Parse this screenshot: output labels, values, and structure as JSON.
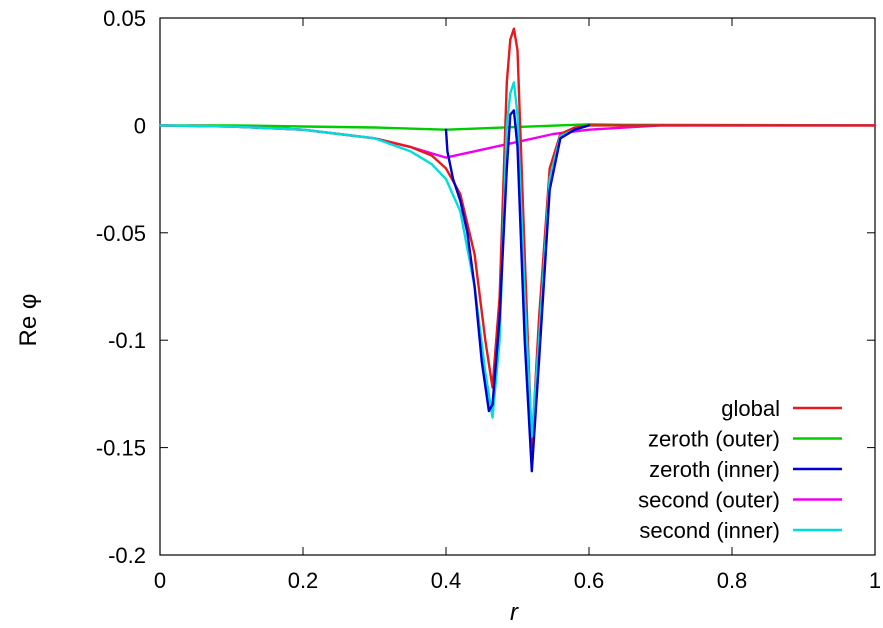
{
  "chart_data": {
    "type": "line",
    "title": "",
    "xlabel": "r",
    "ylabel": "Re φ",
    "xlim": [
      0,
      1
    ],
    "ylim": [
      -0.2,
      0.05
    ],
    "x_ticks": [
      "0",
      "0.2",
      "0.4",
      "0.6",
      "0.8",
      "1"
    ],
    "y_ticks": [
      "0.05",
      "0",
      "-0.05",
      "-0.1",
      "-0.15",
      "-0.2"
    ],
    "grid": false,
    "legend_position": "bottom-right",
    "series": [
      {
        "name": "global",
        "color": "#e41a1c",
        "x": [
          0,
          0.1,
          0.2,
          0.25,
          0.3,
          0.35,
          0.38,
          0.4,
          0.42,
          0.44,
          0.455,
          0.465,
          0.475,
          0.485,
          0.49,
          0.495,
          0.5,
          0.51,
          0.52,
          0.53,
          0.545,
          0.56,
          0.58,
          0.6,
          0.7,
          1
        ],
        "y": [
          0,
          -0.0005,
          -0.002,
          -0.004,
          -0.006,
          -0.01,
          -0.014,
          -0.02,
          -0.032,
          -0.06,
          -0.1,
          -0.122,
          -0.08,
          0.02,
          0.04,
          0.045,
          0.035,
          -0.06,
          -0.15,
          -0.09,
          -0.02,
          -0.004,
          -0.001,
          0,
          0,
          0
        ]
      },
      {
        "name": "zeroth (outer)",
        "color": "#00cc00",
        "x": [
          0,
          0.1,
          0.2,
          0.3,
          0.4,
          0.6,
          0.65,
          1
        ],
        "y": [
          0,
          0,
          -0.0005,
          -0.001,
          -0.002,
          0.0005,
          0.0003,
          0
        ]
      },
      {
        "name": "zeroth (inner)",
        "color": "#0000cc",
        "x": [
          0.4,
          0.402,
          0.41,
          0.42,
          0.43,
          0.44,
          0.45,
          0.46,
          0.465,
          0.475,
          0.485,
          0.49,
          0.495,
          0.5,
          0.51,
          0.52,
          0.53,
          0.545,
          0.56,
          0.58,
          0.6
        ],
        "y": [
          -0.002,
          -0.012,
          -0.025,
          -0.035,
          -0.05,
          -0.075,
          -0.11,
          -0.133,
          -0.13,
          -0.09,
          -0.02,
          0.005,
          0.007,
          -0.01,
          -0.1,
          -0.161,
          -0.11,
          -0.03,
          -0.006,
          -0.002,
          0
        ]
      },
      {
        "name": "second (outer)",
        "color": "#ee00ee",
        "x": [
          0,
          0.1,
          0.2,
          0.3,
          0.35,
          0.4,
          0.55,
          0.6,
          0.65,
          0.7,
          1
        ],
        "y": [
          0,
          -0.0005,
          -0.002,
          -0.006,
          -0.01,
          -0.015,
          -0.004,
          -0.002,
          -0.001,
          0,
          0
        ]
      },
      {
        "name": "second (inner)",
        "color": "#00dddd",
        "x": [
          0,
          0.1,
          0.2,
          0.3,
          0.35,
          0.38,
          0.4,
          0.42,
          0.44,
          0.455,
          0.465,
          0.475,
          0.485,
          0.49,
          0.495,
          0.5,
          0.51,
          0.52,
          0.53,
          0.545,
          0.56,
          0.58,
          0.6
        ],
        "y": [
          0,
          -0.0005,
          -0.002,
          -0.006,
          -0.012,
          -0.018,
          -0.025,
          -0.04,
          -0.075,
          -0.115,
          -0.136,
          -0.1,
          0.0,
          0.015,
          0.02,
          0.005,
          -0.08,
          -0.145,
          -0.1,
          -0.025,
          -0.005,
          -0.002,
          0
        ]
      }
    ]
  }
}
